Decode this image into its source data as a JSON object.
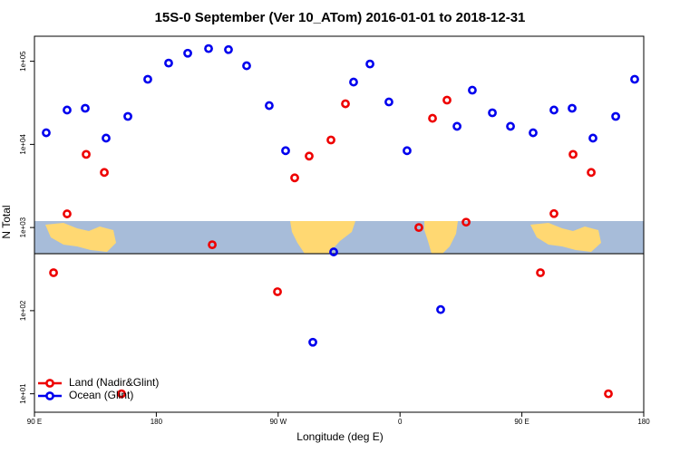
{
  "chart_data": {
    "type": "scatter",
    "title": "15S-0 September (Ver 10_ATom)   2016-01-01 to 2018-12-31",
    "x_label": "Longitude (deg E)",
    "y_label": "N Total",
    "log_y": true,
    "legend": "lower left",
    "xlim": [
      90,
      540
    ],
    "ylim": [
      6,
      200000
    ],
    "xticks": [
      {
        "value": 90,
        "label": "90 E"
      },
      180,
      {
        "value": 270,
        "label": "90 W"
      },
      {
        "value": 360,
        "label": "0"
      },
      {
        "value": 450,
        "label": "90 E"
      },
      {
        "value": 540,
        "label": "180"
      }
    ],
    "yticks": [
      {
        "value": 10,
        "label": "1e+01"
      },
      {
        "value": 100,
        "label": "1e+02"
      },
      {
        "value": 1000,
        "label": "1e+03"
      },
      {
        "value": 10000,
        "label": "1e+04"
      },
      {
        "value": 100000,
        "label": "1e+05"
      }
    ],
    "series": [
      {
        "name": "Land (Nadir&Glint)",
        "color": "#ee0000",
        "x": [
          104.1,
          114.1,
          128.2,
          141.6,
          154.3,
          221.3,
          269.5,
          282.2,
          292.9,
          309.0,
          319.7,
          373.9,
          384.0,
          394.7,
          408.8,
          463.7,
          473.7,
          487.8,
          501.2,
          513.9
        ],
        "values": [
          286,
          1460,
          7590,
          4600,
          10,
          621,
          169,
          3960,
          7230,
          11300,
          30800,
          1000,
          20600,
          34100,
          1160,
          286,
          1470,
          7590,
          4600,
          10
        ]
      },
      {
        "name": "Ocean (Glint)",
        "color": "#0000ee",
        "x": [
          98.7,
          114.1,
          127.5,
          142.9,
          159.0,
          173.7,
          189.1,
          203.2,
          218.6,
          233.3,
          246.7,
          263.4,
          275.5,
          311.0,
          295.6,
          325.7,
          337.8,
          351.8,
          365.2,
          390.0,
          402.1,
          413.4,
          428.2,
          441.6,
          458.3,
          473.7,
          487.1,
          502.5,
          519.3,
          533.3
        ],
        "values": [
          13800,
          25900,
          27200,
          11900,
          21700,
          60700,
          95100,
          125000,
          142000,
          138000,
          88300,
          29300,
          8400,
          509,
          41.7,
          56200,
          92700,
          32400,
          8400,
          103,
          16500,
          44900,
          24000,
          16500,
          13800,
          25900,
          27200,
          11900,
          21700,
          60700
        ]
      }
    ]
  }
}
